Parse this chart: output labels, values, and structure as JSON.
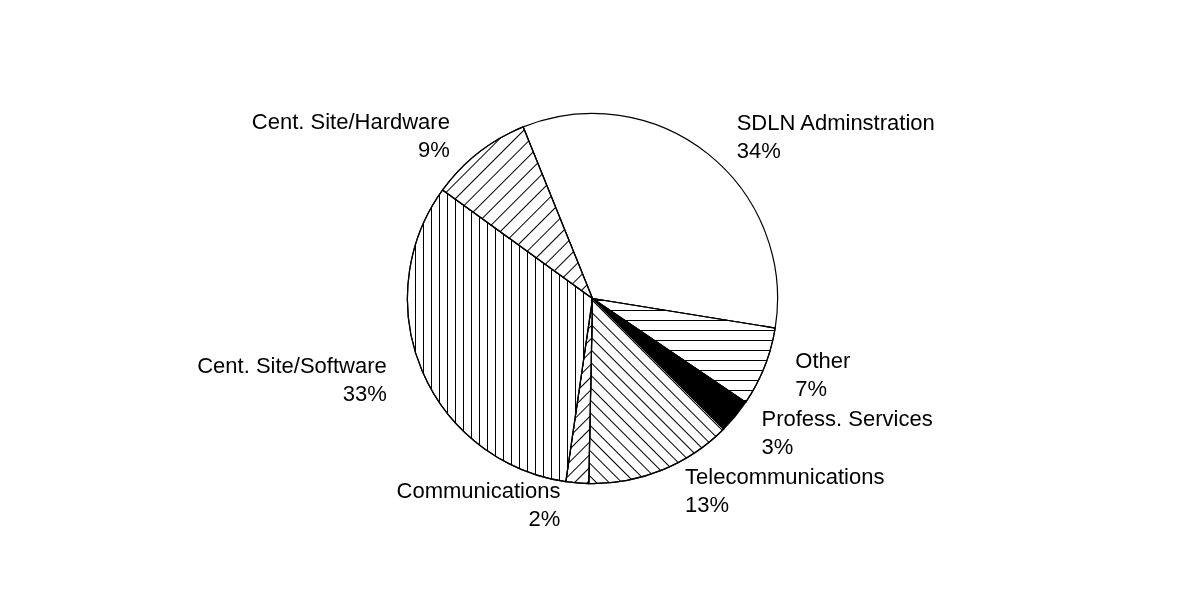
{
  "chart_data": {
    "type": "pie",
    "categories": [
      "SDLN Adminstration",
      "Other",
      "Profess. Services",
      "Telecommunications",
      "Communications",
      "Cent. Site/Software",
      "Cent. Site/Hardware"
    ],
    "values": [
      34,
      7,
      3,
      13,
      2,
      33,
      9
    ],
    "value_labels": [
      "34%",
      "7%",
      "3%",
      "13%",
      "2%",
      "33%",
      "9%"
    ],
    "colors": [
      "#ffffff",
      "#ffffff",
      "#000000",
      "#ffffff",
      "#ffffff",
      "#ffffff",
      "#ffffff"
    ],
    "legend": false
  }
}
